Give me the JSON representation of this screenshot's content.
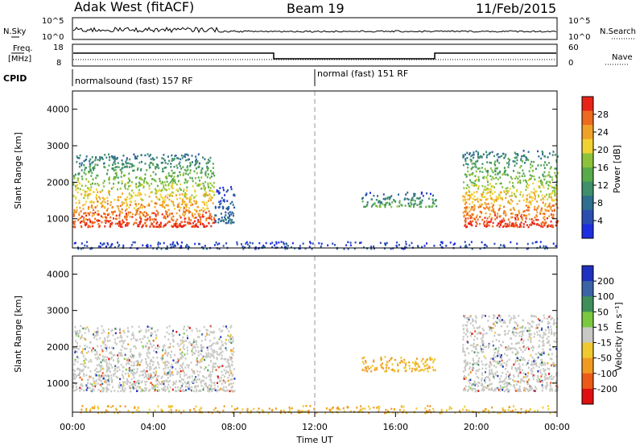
{
  "header": {
    "station": "Adak West (fitACF)",
    "beam": "Beam 19",
    "date": "11/Feb/2015"
  },
  "top_panels": {
    "nsky_label": "N.Sky",
    "nsearch_label": "N.Search",
    "nsky_ticks": [
      "10^5",
      "10^0"
    ],
    "nsearch_ticks": [
      "10^5",
      "10^0"
    ],
    "freq_label_1": "Freq.",
    "freq_label_2": "[MHz]",
    "freq_ticks": [
      "18",
      "8"
    ],
    "nave_label": "Nave",
    "nave_ticks": [
      "60",
      "0"
    ],
    "cpid_label": "CPID",
    "cpid_segments": [
      {
        "label": "normalsound (fast) 157 RF",
        "start_hour": 0,
        "end_hour": 12
      },
      {
        "label": "normal (fast) 151 RF",
        "start_hour": 12,
        "end_hour": 24
      }
    ]
  },
  "x_axis": {
    "label": "Time UT",
    "ticks": [
      "00:00",
      "04:00",
      "08:00",
      "12:00",
      "16:00",
      "20:00",
      "00:00"
    ]
  },
  "colors": {
    "power": [
      "#1f2fe0",
      "#2b4fb0",
      "#2e6e8e",
      "#3f8f6a",
      "#58ab4a",
      "#8cc23a",
      "#f0d232",
      "#f0a228",
      "#ee6a1e",
      "#e82418"
    ],
    "velocity": [
      "#2030c0",
      "#3a64a6",
      "#3f8f5a",
      "#7ac840",
      "#c8c8c4",
      "#f0c830",
      "#f09a22",
      "#ec5a18",
      "#e01010"
    ]
  },
  "chart_data": [
    {
      "type": "heatmap",
      "name": "power",
      "ylabel": "Slant Range [km]",
      "xlabel": "Time UT",
      "ylim": [
        200,
        4500
      ],
      "yticks": [
        "1000",
        "2000",
        "3000",
        "4000"
      ],
      "colorbar_label": "Power [dB]",
      "colorbar_ticks": [
        "28",
        "24",
        "20",
        "16",
        "12",
        "8",
        "4"
      ],
      "echo_regions": [
        {
          "start_hour": 0.0,
          "end_hour": 7.0,
          "range_min_km": 800,
          "range_max_km": 2800,
          "peak_db": 30
        },
        {
          "start_hour": 7.0,
          "end_hour": 8.0,
          "range_min_km": 900,
          "range_max_km": 1900,
          "peak_db": 6
        },
        {
          "start_hour": 14.3,
          "end_hour": 18.0,
          "range_min_km": 1350,
          "range_max_km": 1750,
          "peak_db": 14
        },
        {
          "start_hour": 19.3,
          "end_hour": 24.0,
          "range_min_km": 800,
          "range_max_km": 2900,
          "peak_db": 30
        },
        {
          "start_hour": 0.0,
          "end_hour": 24.0,
          "range_min_km": 200,
          "range_max_km": 400,
          "peak_db": 4
        }
      ]
    },
    {
      "type": "heatmap",
      "name": "velocity",
      "ylabel": "Slant Range [km]",
      "xlabel": "Time UT",
      "ylim": [
        200,
        4500
      ],
      "yticks": [
        "1000",
        "2000",
        "3000",
        "4000"
      ],
      "colorbar_label": "Velocity [m s⁻¹]",
      "colorbar_ticks": [
        "200",
        "100",
        "50",
        "15",
        "-15",
        "-50",
        "-100",
        "-200"
      ],
      "echo_regions": [
        {
          "start_hour": 0.0,
          "end_hour": 8.0,
          "range_min_km": 800,
          "range_max_km": 2600,
          "typical_velocity": 0
        },
        {
          "start_hour": 14.3,
          "end_hour": 18.0,
          "range_min_km": 1350,
          "range_max_km": 1750,
          "typical_velocity": -40
        },
        {
          "start_hour": 19.3,
          "end_hour": 24.0,
          "range_min_km": 800,
          "range_max_km": 2900,
          "typical_velocity": 0
        },
        {
          "start_hour": 0.0,
          "end_hour": 24.0,
          "range_min_km": 200,
          "range_max_km": 400,
          "typical_velocity": -40
        }
      ]
    }
  ]
}
